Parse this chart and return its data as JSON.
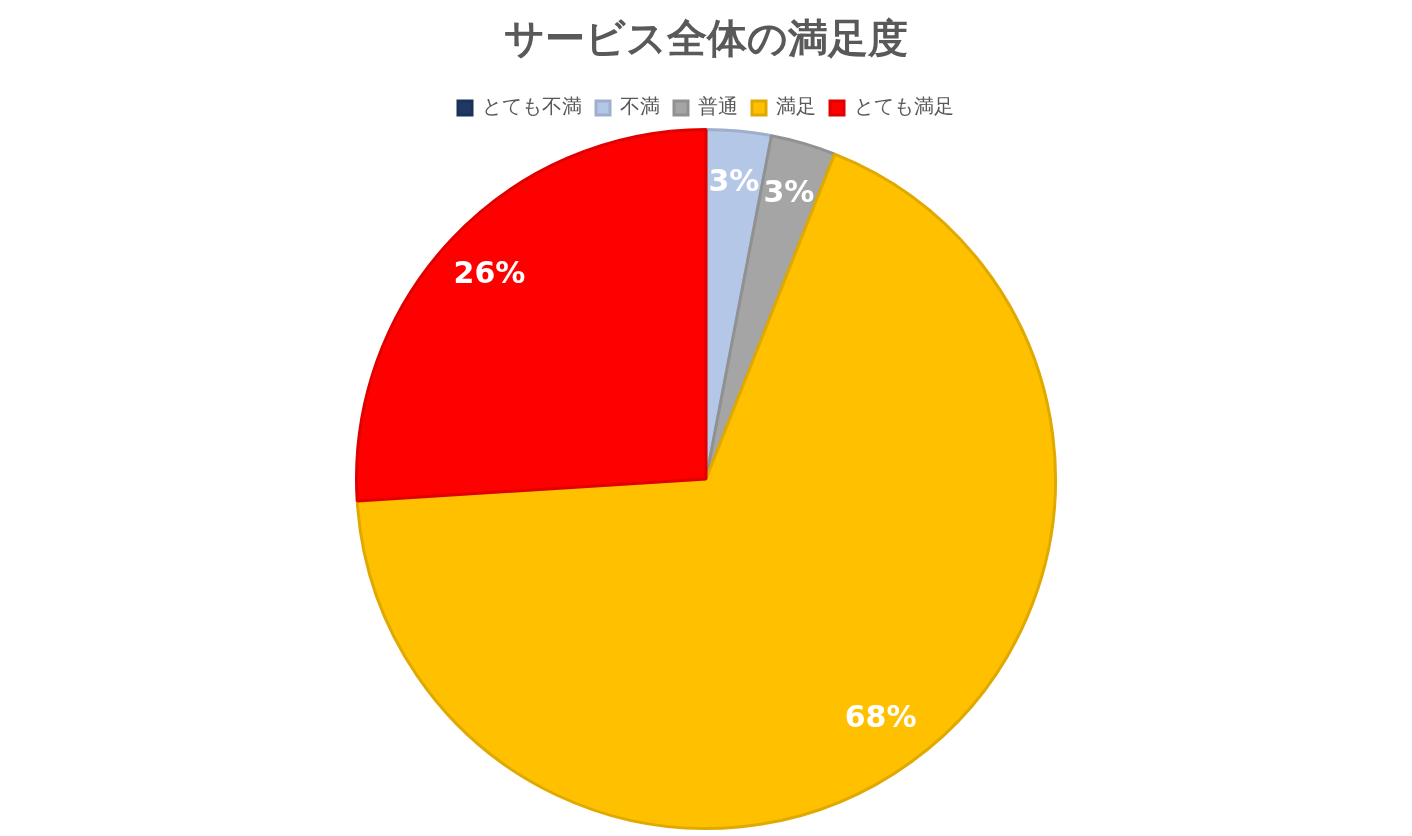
{
  "chart_data": {
    "type": "pie",
    "title": "サービス全体の満足度",
    "categories": [
      "とても不満",
      "不満",
      "普通",
      "満足",
      "とても満足"
    ],
    "values": [
      0,
      3,
      3,
      68,
      26
    ],
    "colors": [
      "#1f3864",
      "#b4c7e7",
      "#a5a5a5",
      "#ffc000",
      "#ff0000"
    ],
    "value_labels": [
      null,
      "3%",
      "3%",
      "68%",
      "26%"
    ],
    "legend": "top"
  }
}
